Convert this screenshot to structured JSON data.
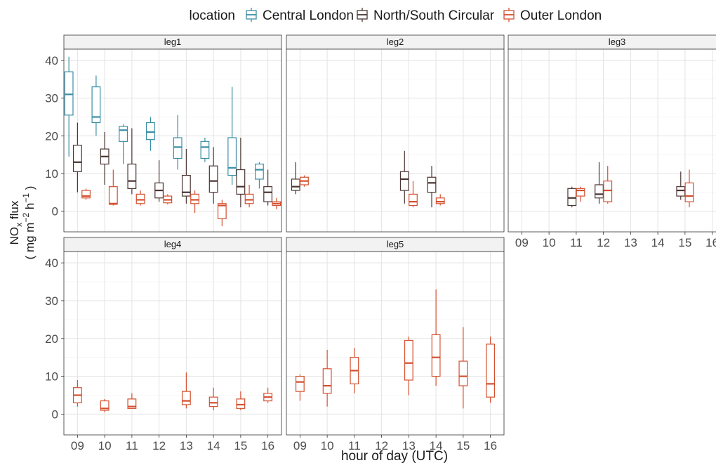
{
  "chart_data": {
    "type": "boxplot",
    "ylabel_main": "NO",
    "ylabel_sub": "x",
    "ylabel_rest": " flux",
    "ylabel_units_a": "( mg m",
    "ylabel_units_sup1": "−2",
    "ylabel_units_b": " h",
    "ylabel_units_sup2": "−1",
    "ylabel_units_c": " )",
    "xlabel": "hour of day (UTC)",
    "ylim": [
      -5.5,
      43
    ],
    "yticks": [
      0,
      10,
      20,
      30,
      40
    ],
    "categories": [
      "09",
      "10",
      "11",
      "12",
      "13",
      "14",
      "15",
      "16"
    ],
    "grid": true,
    "legend": {
      "title": "location",
      "position": "top",
      "items": [
        {
          "name": "Central London",
          "color": "#3a8fa6"
        },
        {
          "name": "North/South Circular",
          "color": "#4a3532"
        },
        {
          "name": "Outer London",
          "color": "#d4502f"
        }
      ]
    },
    "panels": [
      {
        "title": "leg1",
        "boxes": [
          {
            "x": "09",
            "group": "Central London",
            "min": 14.5,
            "q1": 25.5,
            "median": 31,
            "q3": 37,
            "max": 41
          },
          {
            "x": "09",
            "group": "North/South Circular",
            "min": 5,
            "q1": 10.5,
            "median": 13,
            "q3": 17.5,
            "max": 23.5
          },
          {
            "x": "09",
            "group": "Outer London",
            "min": 3,
            "q1": 3.5,
            "median": 4,
            "q3": 5.5,
            "max": 6
          },
          {
            "x": "10",
            "group": "Central London",
            "min": 20,
            "q1": 23.5,
            "median": 25,
            "q3": 33,
            "max": 36
          },
          {
            "x": "10",
            "group": "North/South Circular",
            "min": 7,
            "q1": 12.5,
            "median": 14.5,
            "q3": 16.5,
            "max": 21
          },
          {
            "x": "10",
            "group": "Outer London",
            "min": 1.5,
            "q1": 1.8,
            "median": 2,
            "q3": 6.5,
            "max": 11
          },
          {
            "x": "11",
            "group": "Central London",
            "min": 12.5,
            "q1": 18.5,
            "median": 21.5,
            "q3": 22.5,
            "max": 23
          },
          {
            "x": "11",
            "group": "North/South Circular",
            "min": 4.5,
            "q1": 6,
            "median": 8,
            "q3": 12.5,
            "max": 22
          },
          {
            "x": "11",
            "group": "Outer London",
            "min": 1.5,
            "q1": 2,
            "median": 3,
            "q3": 4.5,
            "max": 5.5
          },
          {
            "x": "12",
            "group": "Central London",
            "min": 16,
            "q1": 19,
            "median": 21,
            "q3": 23.5,
            "max": 25
          },
          {
            "x": "12",
            "group": "North/South Circular",
            "min": 2.5,
            "q1": 3.5,
            "median": 5.5,
            "q3": 7.5,
            "max": 13.5
          },
          {
            "x": "12",
            "group": "Outer London",
            "min": 1.8,
            "q1": 2.2,
            "median": 3,
            "q3": 4,
            "max": 4.5
          },
          {
            "x": "13",
            "group": "Central London",
            "min": 11,
            "q1": 14,
            "median": 17,
            "q3": 19.5,
            "max": 25.5
          },
          {
            "x": "13",
            "group": "North/South Circular",
            "min": 2,
            "q1": 4,
            "median": 5,
            "q3": 9.5,
            "max": 16.5
          },
          {
            "x": "13",
            "group": "Outer London",
            "min": -0.5,
            "q1": 2,
            "median": 3,
            "q3": 4.5,
            "max": 5.5
          },
          {
            "x": "14",
            "group": "Central London",
            "min": 13,
            "q1": 14,
            "median": 17,
            "q3": 18.5,
            "max": 19.5
          },
          {
            "x": "14",
            "group": "North/South Circular",
            "min": 2,
            "q1": 5,
            "median": 8,
            "q3": 12,
            "max": 17
          },
          {
            "x": "14",
            "group": "Outer London",
            "min": -4,
            "q1": -2,
            "median": 1.5,
            "q3": 2,
            "max": 3
          },
          {
            "x": "15",
            "group": "Central London",
            "min": 7,
            "q1": 9.5,
            "median": 11.5,
            "q3": 19.5,
            "max": 33
          },
          {
            "x": "15",
            "group": "North/South Circular",
            "min": 1,
            "q1": 4.5,
            "median": 6.5,
            "q3": 11,
            "max": 19.5
          },
          {
            "x": "15",
            "group": "Outer London",
            "min": 1,
            "q1": 2,
            "median": 3,
            "q3": 4.5,
            "max": 7
          },
          {
            "x": "16",
            "group": "Central London",
            "min": 6,
            "q1": 8.5,
            "median": 11,
            "q3": 12.5,
            "max": 13
          },
          {
            "x": "16",
            "group": "North/South Circular",
            "min": 1.5,
            "q1": 2.5,
            "median": 5,
            "q3": 6.5,
            "max": 11
          },
          {
            "x": "16",
            "group": "Outer London",
            "min": 0.5,
            "q1": 1.5,
            "median": 2,
            "q3": 2.5,
            "max": 3.5
          }
        ]
      },
      {
        "title": "leg2",
        "boxes": [
          {
            "x": "09",
            "group": "North/South Circular",
            "min": 4.5,
            "q1": 5.5,
            "median": 6.5,
            "q3": 8.5,
            "max": 13
          },
          {
            "x": "09",
            "group": "Outer London",
            "min": 6.5,
            "q1": 7,
            "median": 8,
            "q3": 9,
            "max": 9.5
          },
          {
            "x": "13",
            "group": "North/South Circular",
            "min": 2,
            "q1": 5.5,
            "median": 8.5,
            "q3": 10.5,
            "max": 16
          },
          {
            "x": "13",
            "group": "Outer London",
            "min": 1,
            "q1": 1.5,
            "median": 2.5,
            "q3": 4.5,
            "max": 8
          },
          {
            "x": "14",
            "group": "North/South Circular",
            "min": 1,
            "q1": 5,
            "median": 7.5,
            "q3": 9,
            "max": 12
          },
          {
            "x": "14",
            "group": "Outer London",
            "min": 1.5,
            "q1": 2,
            "median": 2.5,
            "q3": 3.5,
            "max": 4.5
          }
        ]
      },
      {
        "title": "leg3",
        "boxes": [
          {
            "x": "11",
            "group": "North/South Circular",
            "min": 1,
            "q1": 1.5,
            "median": 3.5,
            "q3": 6,
            "max": 6.5
          },
          {
            "x": "11",
            "group": "Outer London",
            "min": 2.5,
            "q1": 4,
            "median": 5.5,
            "q3": 6,
            "max": 6.5
          },
          {
            "x": "12",
            "group": "North/South Circular",
            "min": 2,
            "q1": 3.5,
            "median": 4.5,
            "q3": 7,
            "max": 13
          },
          {
            "x": "12",
            "group": "Outer London",
            "min": 2,
            "q1": 2.5,
            "median": 5.5,
            "q3": 8,
            "max": 12
          },
          {
            "x": "15",
            "group": "North/South Circular",
            "min": 3,
            "q1": 4,
            "median": 5.5,
            "q3": 6.5,
            "max": 10.5
          },
          {
            "x": "15",
            "group": "Outer London",
            "min": 1,
            "q1": 2.5,
            "median": 4,
            "q3": 7.5,
            "max": 11
          }
        ]
      },
      {
        "title": "leg4",
        "boxes": [
          {
            "x": "09",
            "group": "Outer London",
            "min": 2,
            "q1": 3,
            "median": 5,
            "q3": 7,
            "max": 9
          },
          {
            "x": "10",
            "group": "Outer London",
            "min": 0.5,
            "q1": 1,
            "median": 1.5,
            "q3": 3.5,
            "max": 4
          },
          {
            "x": "11",
            "group": "Outer London",
            "min": 1.5,
            "q1": 1.5,
            "median": 2,
            "q3": 4,
            "max": 5.5
          },
          {
            "x": "13",
            "group": "Outer London",
            "min": 1.5,
            "q1": 2.5,
            "median": 3.5,
            "q3": 6,
            "max": 11
          },
          {
            "x": "14",
            "group": "Outer London",
            "min": 1,
            "q1": 2,
            "median": 3,
            "q3": 4.5,
            "max": 7
          },
          {
            "x": "15",
            "group": "Outer London",
            "min": 1,
            "q1": 1.5,
            "median": 2.5,
            "q3": 4,
            "max": 6
          },
          {
            "x": "16",
            "group": "Outer London",
            "min": 3,
            "q1": 3.5,
            "median": 4.5,
            "q3": 5.5,
            "max": 7
          }
        ]
      },
      {
        "title": "leg5",
        "boxes": [
          {
            "x": "09",
            "group": "Outer London",
            "min": 3.5,
            "q1": 6,
            "median": 8.5,
            "q3": 10,
            "max": 10.5
          },
          {
            "x": "10",
            "group": "Outer London",
            "min": 2,
            "q1": 5.5,
            "median": 7.5,
            "q3": 12,
            "max": 17
          },
          {
            "x": "11",
            "group": "Outer London",
            "min": 5.5,
            "q1": 8,
            "median": 11.5,
            "q3": 15,
            "max": 17.5
          },
          {
            "x": "13",
            "group": "Outer London",
            "min": 5,
            "q1": 9,
            "median": 13.5,
            "q3": 19.5,
            "max": 20.5
          },
          {
            "x": "14",
            "group": "Outer London",
            "min": 7.5,
            "q1": 10,
            "median": 15,
            "q3": 21,
            "max": 33
          },
          {
            "x": "15",
            "group": "Outer London",
            "min": 1.5,
            "q1": 7.5,
            "median": 10,
            "q3": 14,
            "max": 23
          },
          {
            "x": "16",
            "group": "Outer London",
            "min": 3,
            "q1": 4.5,
            "median": 8,
            "q3": 18.5,
            "max": 20.5
          }
        ]
      }
    ]
  }
}
